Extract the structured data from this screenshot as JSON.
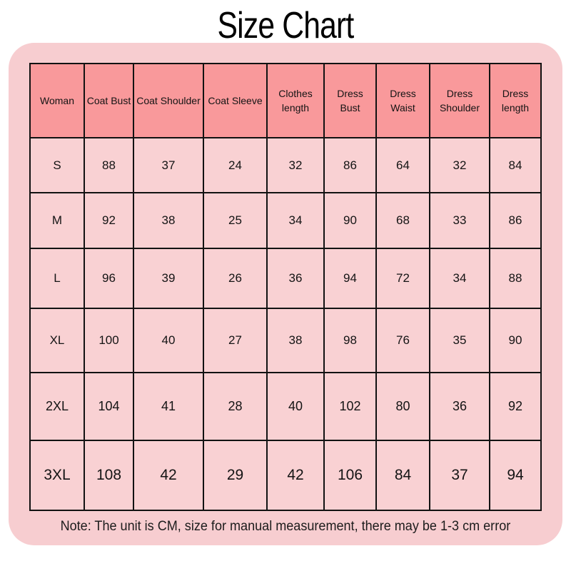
{
  "title": "Size Chart",
  "note": "Note: The unit is CM, size for manual measurement, there may be 1-3 cm error",
  "colors": {
    "page_background": "#ffffff",
    "card_background": "#f7cdd0",
    "header_cell_background": "#f9999b",
    "body_cell_background": "#f9d1d3",
    "border": "#121212",
    "text": "#141414"
  },
  "chart_data": {
    "type": "table",
    "title": "Size Chart",
    "columns": [
      "Woman",
      "Coat Bust",
      "Coat Shoulder",
      "Coat Sleeve",
      "Clothes length",
      "Dress Bust",
      "Dress Waist",
      "Dress Shoulder",
      "Dress length"
    ],
    "rows": [
      [
        "S",
        "88",
        "37",
        "24",
        "32",
        "86",
        "64",
        "32",
        "84"
      ],
      [
        "M",
        "92",
        "38",
        "25",
        "34",
        "90",
        "68",
        "33",
        "86"
      ],
      [
        "L",
        "96",
        "39",
        "26",
        "36",
        "94",
        "72",
        "34",
        "88"
      ],
      [
        "XL",
        "100",
        "40",
        "27",
        "38",
        "98",
        "76",
        "35",
        "90"
      ],
      [
        "2XL",
        "104",
        "41",
        "28",
        "40",
        "102",
        "80",
        "36",
        "92"
      ],
      [
        "3XL",
        "108",
        "42",
        "29",
        "42",
        "106",
        "84",
        "37",
        "94"
      ]
    ],
    "unit": "CM",
    "footnote": "Note: The unit is CM, size for manual measurement, there may be 1-3 cm error"
  }
}
